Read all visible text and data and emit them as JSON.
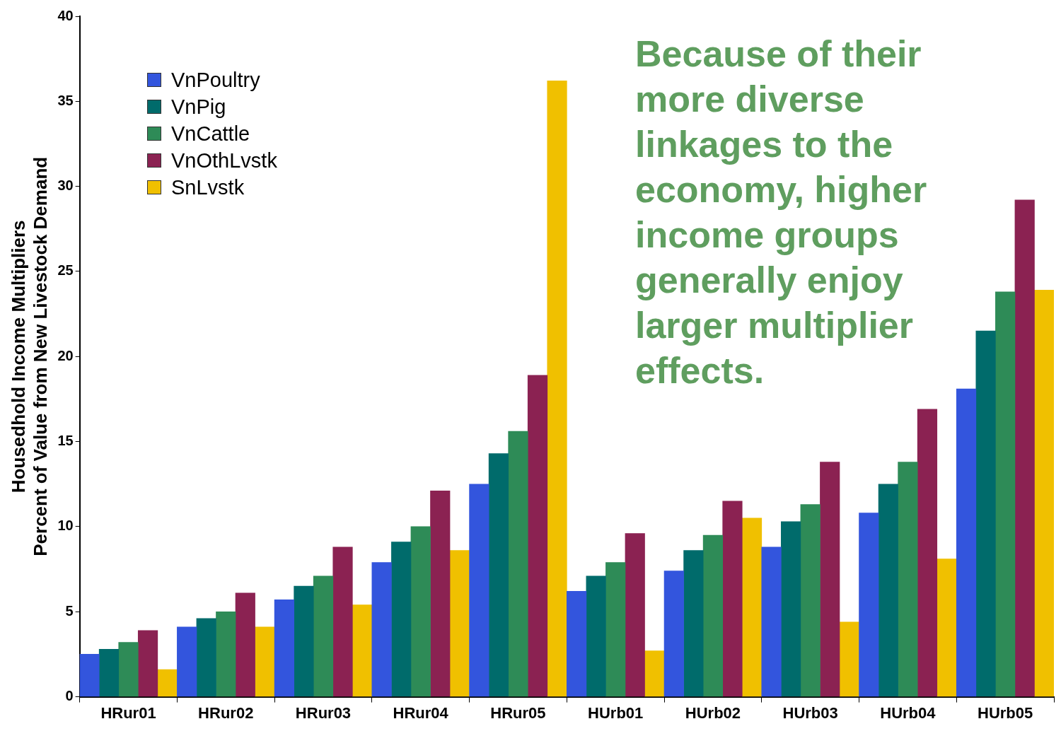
{
  "chart_data": {
    "type": "bar",
    "ylabel": "Housedhold Income Multipliers\nPercent of Value from New Livestock Demand",
    "categories": [
      "HRur01",
      "HRur02",
      "HRur03",
      "HRur04",
      "HRur05",
      "HUrb01",
      "HUrb02",
      "HUrb03",
      "HUrb04",
      "HUrb05"
    ],
    "series": [
      {
        "name": "VnPoultry",
        "color": "#3355dd",
        "values": [
          2.5,
          4.1,
          5.7,
          7.9,
          12.5,
          6.2,
          7.4,
          8.8,
          10.8,
          18.1
        ]
      },
      {
        "name": "VnPig",
        "color": "#006b6b",
        "values": [
          2.8,
          4.6,
          6.5,
          9.1,
          14.3,
          7.1,
          8.6,
          10.3,
          12.5,
          21.5
        ]
      },
      {
        "name": "VnCattle",
        "color": "#2e8b57",
        "values": [
          3.2,
          5.0,
          7.1,
          10.0,
          15.6,
          7.9,
          9.5,
          11.3,
          13.8,
          23.8
        ]
      },
      {
        "name": "VnOthLvstk",
        "color": "#8b2252",
        "values": [
          3.9,
          6.1,
          8.8,
          12.1,
          18.9,
          9.6,
          11.5,
          13.8,
          16.9,
          29.2
        ]
      },
      {
        "name": "SnLvstk",
        "color": "#f0c000",
        "values": [
          1.6,
          4.1,
          5.4,
          8.6,
          36.2,
          2.7,
          10.5,
          4.4,
          8.1,
          23.9
        ]
      }
    ],
    "ylim": [
      0,
      40
    ],
    "yticks": [
      0,
      5,
      10,
      15,
      20,
      25,
      30,
      35,
      40
    ],
    "grid": false,
    "legend": "top left",
    "annotations": [
      "Because of their more diverse linkages to the economy, higher income groups generally enjoy larger multiplier effects."
    ]
  }
}
